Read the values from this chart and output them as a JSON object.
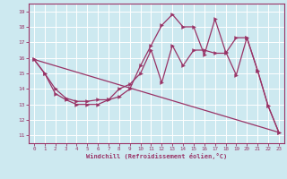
{
  "title": "",
  "xlabel": "Windchill (Refroidissement éolien,°C)",
  "ylabel": "",
  "background_color": "#cde9f0",
  "grid_color": "#ffffff",
  "line_color": "#993366",
  "xlim": [
    -0.5,
    23.5
  ],
  "ylim": [
    10.5,
    19.5
  ],
  "yticks": [
    11,
    12,
    13,
    14,
    15,
    16,
    17,
    18,
    19
  ],
  "xticks": [
    0,
    1,
    2,
    3,
    4,
    5,
    6,
    7,
    8,
    9,
    10,
    11,
    12,
    13,
    14,
    15,
    16,
    17,
    18,
    19,
    20,
    21,
    22,
    23
  ],
  "line1_x": [
    0,
    1,
    2,
    3,
    4,
    5,
    6,
    7,
    8,
    9,
    10,
    11,
    12,
    13,
    14,
    15,
    16,
    17,
    18,
    19,
    20,
    21,
    22,
    23
  ],
  "line1_y": [
    15.9,
    15.0,
    13.7,
    13.3,
    13.0,
    13.0,
    13.0,
    13.3,
    13.5,
    14.0,
    15.5,
    16.8,
    18.1,
    18.8,
    18.0,
    18.0,
    16.2,
    18.5,
    16.4,
    14.9,
    17.3,
    15.2,
    12.9,
    11.2
  ],
  "line2_x": [
    0,
    1,
    2,
    3,
    4,
    5,
    6,
    7,
    8,
    9,
    10,
    11,
    12,
    13,
    14,
    15,
    16,
    17,
    18,
    19,
    20,
    21,
    22,
    23
  ],
  "line2_y": [
    15.9,
    15.0,
    14.0,
    13.4,
    13.2,
    13.2,
    13.3,
    13.3,
    14.0,
    14.3,
    15.0,
    16.5,
    14.4,
    16.8,
    15.5,
    16.5,
    16.5,
    16.3,
    16.3,
    17.3,
    17.3,
    15.2,
    12.9,
    11.2
  ],
  "line3_x": [
    0,
    23
  ],
  "line3_y": [
    15.9,
    11.2
  ]
}
